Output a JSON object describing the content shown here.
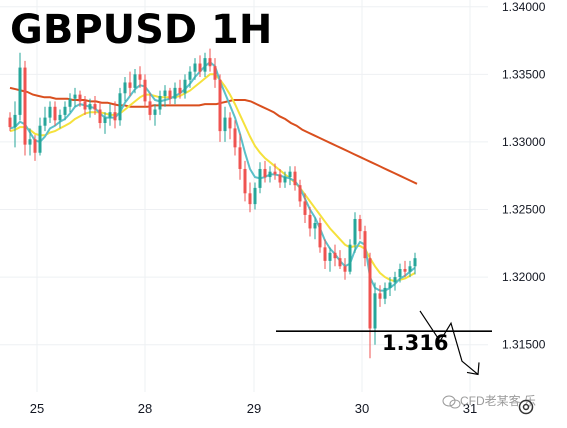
{
  "chart_data": {
    "type": "candlestick",
    "title": "GBPUSD 1H",
    "xlabel": "",
    "ylabel": "",
    "ylim": [
      1.3115,
      1.3405
    ],
    "y_ticks": [
      "1.34000",
      "1.33500",
      "1.33000",
      "1.32500",
      "1.32000",
      "1.31500"
    ],
    "x_ticks": [
      {
        "label": "25",
        "x": 37
      },
      {
        "label": "28",
        "x": 145
      },
      {
        "label": "29",
        "x": 254
      },
      {
        "label": "30",
        "x": 362
      },
      {
        "label": "31",
        "x": 470
      }
    ],
    "grid": true,
    "colors": {
      "up": "#26a69a",
      "down": "#ef5350",
      "ma_fast": "#5bc0c9",
      "ma_mid": "#f5e13c",
      "ma_slow": "#d94f1e",
      "level_line": "#000000"
    },
    "candles": [
      [
        1.3318,
        1.3322,
        1.3308,
        1.3311
      ],
      [
        1.3311,
        1.333,
        1.3296,
        1.332
      ],
      [
        1.332,
        1.3366,
        1.3316,
        1.3355
      ],
      [
        1.3355,
        1.336,
        1.329,
        1.3298
      ],
      [
        1.3298,
        1.331,
        1.329,
        1.3302
      ],
      [
        1.3302,
        1.3305,
        1.3286,
        1.3292
      ],
      [
        1.3292,
        1.3318,
        1.329,
        1.3312
      ],
      [
        1.3312,
        1.3326,
        1.3308,
        1.3318
      ],
      [
        1.3318,
        1.333,
        1.3314,
        1.3326
      ],
      [
        1.3326,
        1.333,
        1.3312,
        1.3316
      ],
      [
        1.3316,
        1.3324,
        1.331,
        1.332
      ],
      [
        1.332,
        1.333,
        1.3316,
        1.3326
      ],
      [
        1.3326,
        1.3336,
        1.3322,
        1.3332
      ],
      [
        1.3332,
        1.334,
        1.3326,
        1.3335
      ],
      [
        1.3335,
        1.3338,
        1.3326,
        1.333
      ],
      [
        1.333,
        1.3334,
        1.332,
        1.3324
      ],
      [
        1.3324,
        1.3332,
        1.3318,
        1.3328
      ],
      [
        1.3328,
        1.3334,
        1.332,
        1.3324
      ],
      [
        1.3324,
        1.333,
        1.331,
        1.3314
      ],
      [
        1.3314,
        1.3322,
        1.3306,
        1.3318
      ],
      [
        1.3318,
        1.3328,
        1.3312,
        1.3322
      ],
      [
        1.3322,
        1.333,
        1.331,
        1.3316
      ],
      [
        1.3316,
        1.334,
        1.3312,
        1.3336
      ],
      [
        1.3336,
        1.3348,
        1.333,
        1.3344
      ],
      [
        1.3344,
        1.3352,
        1.3334,
        1.334
      ],
      [
        1.334,
        1.3354,
        1.3336,
        1.335
      ],
      [
        1.335,
        1.3356,
        1.334,
        1.3346
      ],
      [
        1.3346,
        1.335,
        1.3326,
        1.333
      ],
      [
        1.333,
        1.3336,
        1.3316,
        1.332
      ],
      [
        1.332,
        1.3328,
        1.3312,
        1.3324
      ],
      [
        1.3324,
        1.3338,
        1.332,
        1.3334
      ],
      [
        1.3334,
        1.3342,
        1.3326,
        1.3338
      ],
      [
        1.3338,
        1.334,
        1.3328,
        1.3332
      ],
      [
        1.3332,
        1.3344,
        1.3328,
        1.334
      ],
      [
        1.334,
        1.3346,
        1.3332,
        1.3336
      ],
      [
        1.3336,
        1.335,
        1.3332,
        1.3346
      ],
      [
        1.3346,
        1.3356,
        1.334,
        1.3352
      ],
      [
        1.3352,
        1.3362,
        1.3346,
        1.3358
      ],
      [
        1.3358,
        1.3364,
        1.3348,
        1.3352
      ],
      [
        1.3352,
        1.3366,
        1.3348,
        1.3362
      ],
      [
        1.3362,
        1.3369,
        1.3352,
        1.3356
      ],
      [
        1.3356,
        1.3362,
        1.334,
        1.3346
      ],
      [
        1.3346,
        1.335,
        1.33,
        1.3308
      ],
      [
        1.3308,
        1.3326,
        1.33,
        1.3318
      ],
      [
        1.3318,
        1.3322,
        1.3302,
        1.331
      ],
      [
        1.331,
        1.3316,
        1.329,
        1.3296
      ],
      [
        1.3296,
        1.3306,
        1.3272,
        1.328
      ],
      [
        1.328,
        1.3286,
        1.3256,
        1.3262
      ],
      [
        1.3262,
        1.327,
        1.3248,
        1.3254
      ],
      [
        1.3254,
        1.327,
        1.325,
        1.3266
      ],
      [
        1.3266,
        1.3285,
        1.3262,
        1.328
      ],
      [
        1.328,
        1.3286,
        1.327,
        1.3274
      ],
      [
        1.3274,
        1.3282,
        1.327,
        1.3278
      ],
      [
        1.3278,
        1.3284,
        1.3272,
        1.3276
      ],
      [
        1.3276,
        1.328,
        1.3266,
        1.327
      ],
      [
        1.327,
        1.3278,
        1.3266,
        1.3274
      ],
      [
        1.3274,
        1.3282,
        1.3268,
        1.3278
      ],
      [
        1.3278,
        1.3282,
        1.3264,
        1.3268
      ],
      [
        1.3268,
        1.3272,
        1.3252,
        1.3256
      ],
      [
        1.3256,
        1.3262,
        1.324,
        1.3246
      ],
      [
        1.3246,
        1.3252,
        1.323,
        1.3236
      ],
      [
        1.3236,
        1.3244,
        1.3228,
        1.324
      ],
      [
        1.324,
        1.3244,
        1.3218,
        1.3222
      ],
      [
        1.3222,
        1.3228,
        1.3206,
        1.3212
      ],
      [
        1.3212,
        1.3222,
        1.3204,
        1.3218
      ],
      [
        1.3218,
        1.3224,
        1.3208,
        1.3214
      ],
      [
        1.3214,
        1.322,
        1.3206,
        1.3208
      ],
      [
        1.3208,
        1.3214,
        1.3198,
        1.3204
      ],
      [
        1.3204,
        1.3228,
        1.3202,
        1.3224
      ],
      [
        1.3224,
        1.3248,
        1.3218,
        1.3243
      ],
      [
        1.3243,
        1.3246,
        1.3228,
        1.3234
      ],
      [
        1.3234,
        1.3238,
        1.3208,
        1.3214
      ],
      [
        1.3214,
        1.3218,
        1.314,
        1.3162
      ],
      [
        1.3162,
        1.3196,
        1.315,
        1.3188
      ],
      [
        1.3188,
        1.3194,
        1.3178,
        1.3184
      ],
      [
        1.3184,
        1.3196,
        1.318,
        1.3192
      ],
      [
        1.3192,
        1.32,
        1.3186,
        1.3196
      ],
      [
        1.3196,
        1.3204,
        1.319,
        1.32
      ],
      [
        1.32,
        1.321,
        1.3196,
        1.3206
      ],
      [
        1.3206,
        1.3212,
        1.32,
        1.3204
      ],
      [
        1.3204,
        1.3212,
        1.32,
        1.3208
      ],
      [
        1.3208,
        1.3218,
        1.3202,
        1.3214
      ]
    ],
    "ma_fast": [
      1.331,
      1.3311,
      1.3315,
      1.3313,
      1.3307,
      1.3301,
      1.33,
      1.3304,
      1.331,
      1.3312,
      1.3315,
      1.3317,
      1.3321,
      1.3326,
      1.3328,
      1.3327,
      1.3326,
      1.3325,
      1.3321,
      1.3318,
      1.3318,
      1.3318,
      1.3322,
      1.3329,
      1.3334,
      1.3339,
      1.3342,
      1.3341,
      1.3336,
      1.3331,
      1.333,
      1.3331,
      1.3332,
      1.3334,
      1.3336,
      1.3339,
      1.3343,
      1.3348,
      1.3352,
      1.3356,
      1.3359,
      1.3356,
      1.3345,
      1.3336,
      1.3327,
      1.3318,
      1.3306,
      1.3292,
      1.328,
      1.3274,
      1.3273,
      1.3274,
      1.3276,
      1.3276,
      1.3275,
      1.3274,
      1.3273,
      1.3271,
      1.3266,
      1.3258,
      1.325,
      1.3244,
      1.3236,
      1.3227,
      1.3221,
      1.3217,
      1.3212,
      1.3208,
      1.321,
      1.322,
      1.3226,
      1.3224,
      1.32,
      1.3192,
      1.319,
      1.319,
      1.3192,
      1.3195,
      1.3199,
      1.3201,
      1.3204,
      1.3207
    ],
    "ma_mid": [
      1.3308,
      1.3309,
      1.3311,
      1.3311,
      1.3309,
      1.3306,
      1.3305,
      1.3305,
      1.3307,
      1.3308,
      1.331,
      1.3312,
      1.3314,
      1.3317,
      1.3319,
      1.3321,
      1.3322,
      1.3322,
      1.3322,
      1.3321,
      1.332,
      1.332,
      1.3321,
      1.3324,
      1.3327,
      1.333,
      1.3333,
      1.3335,
      1.3335,
      1.3334,
      1.3333,
      1.3333,
      1.3333,
      1.3333,
      1.3334,
      1.3336,
      1.3338,
      1.3341,
      1.3344,
      1.3347,
      1.335,
      1.335,
      1.3346,
      1.3341,
      1.3335,
      1.3328,
      1.332,
      1.3312,
      1.3304,
      1.3297,
      1.3292,
      1.3288,
      1.3285,
      1.3282,
      1.3279,
      1.3276,
      1.3273,
      1.327,
      1.3266,
      1.3261,
      1.3256,
      1.3251,
      1.3246,
      1.3241,
      1.3236,
      1.3232,
      1.3228,
      1.3224,
      1.3222,
      1.3223,
      1.3223,
      1.3221,
      1.3214,
      1.3208,
      1.3203,
      1.32,
      1.3198,
      1.3197,
      1.3198,
      1.3199,
      1.3201,
      1.3203
    ],
    "ma_slow": [
      1.334,
      1.3339,
      1.3338,
      1.3337,
      1.3335,
      1.3334,
      1.3333,
      1.3333,
      1.3332,
      1.3332,
      1.3332,
      1.3331,
      1.3331,
      1.3331,
      1.333,
      1.333,
      1.3329,
      1.3329,
      1.3328,
      1.3327,
      1.3327,
      1.3326,
      1.3326,
      1.3326,
      1.3326,
      1.3327,
      1.3327,
      1.3327,
      1.3327,
      1.3327,
      1.3327,
      1.3327,
      1.3327,
      1.3327,
      1.3328,
      1.3328,
      1.3328,
      1.3329,
      1.333,
      1.3331,
      1.3331,
      1.3331,
      1.333,
      1.3328,
      1.3326,
      1.3324,
      1.3322,
      1.3319,
      1.3317,
      1.3314,
      1.3312,
      1.3309,
      1.3307,
      1.3305,
      1.3303,
      1.3301,
      1.3299,
      1.3297,
      1.3295,
      1.3293,
      1.3291,
      1.3289,
      1.3287,
      1.3285,
      1.3283,
      1.3281,
      1.3279,
      1.3277,
      1.3275,
      1.3273,
      1.3271,
      1.3269
    ],
    "level": {
      "value": 1.316,
      "label": "1.316"
    },
    "projection_path": [
      [
        1.3175,
        73
      ],
      [
        1.3154,
        76
      ],
      [
        1.3172,
        78.5
      ],
      [
        1.3135,
        81
      ]
    ]
  },
  "watermark": {
    "icon": "wechat-icon",
    "text": "CFD老某客 乐"
  },
  "settings_icon": "gear-icon"
}
